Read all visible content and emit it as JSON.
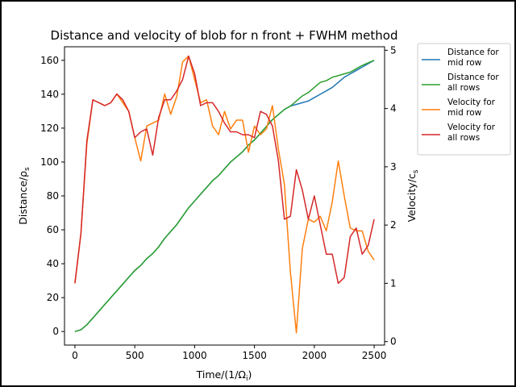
{
  "chart_data": {
    "type": "line",
    "title": "Distance and velocity of blob for n front + FWHM method",
    "xlabel": "Time/(1/Ω",
    "xlabel_sub": "i",
    "xlabel_tail": ")",
    "ylabel": "Distance/ρ",
    "ylabel_sub": "s",
    "y2label": "Velocity/c",
    "y2label_sub": "s",
    "xlim": [
      -87,
      2587
    ],
    "ylim": [
      -8,
      168
    ],
    "y2lim": [
      -0.06,
      5.06
    ],
    "xticks": [
      0,
      500,
      1000,
      1500,
      2000,
      2500
    ],
    "yticks": [
      0,
      20,
      40,
      60,
      80,
      100,
      120,
      140,
      160
    ],
    "y2ticks": [
      0,
      1,
      2,
      3,
      4,
      5
    ],
    "legend_position": "outside-right",
    "grid": false,
    "series": [
      {
        "name": "Distance for mid row",
        "legend_lines": [
          "Distance for",
          "mid row"
        ],
        "axis": "left",
        "color": "#1f77b4",
        "x": [
          0,
          50,
          100,
          150,
          200,
          250,
          300,
          350,
          400,
          450,
          500,
          550,
          600,
          650,
          700,
          750,
          800,
          850,
          900,
          950,
          1000,
          1050,
          1100,
          1150,
          1200,
          1250,
          1300,
          1350,
          1400,
          1450,
          1500,
          1550,
          1600,
          1650,
          1700,
          1750,
          1800,
          1850,
          1900,
          1950,
          2000,
          2050,
          2100,
          2150,
          2200,
          2250,
          2300,
          2350,
          2400,
          2450,
          2500
        ],
        "y": [
          0,
          1,
          4,
          8,
          12,
          16,
          20,
          24,
          28,
          32,
          36,
          39,
          43,
          46,
          50,
          55,
          59,
          63,
          68,
          73,
          77,
          81,
          85,
          89,
          92,
          96,
          100,
          103,
          106,
          110,
          113,
          117,
          121,
          125,
          128,
          131,
          133,
          134,
          135,
          136,
          138,
          140,
          142,
          144,
          147,
          150,
          152,
          154,
          156,
          158,
          160
        ]
      },
      {
        "name": "Distance for all rows",
        "legend_lines": [
          "Distance for",
          "all rows"
        ],
        "axis": "left",
        "color": "#2ca02c",
        "x": [
          0,
          50,
          100,
          150,
          200,
          250,
          300,
          350,
          400,
          450,
          500,
          550,
          600,
          650,
          700,
          750,
          800,
          850,
          900,
          950,
          1000,
          1050,
          1100,
          1150,
          1200,
          1250,
          1300,
          1350,
          1400,
          1450,
          1500,
          1550,
          1600,
          1650,
          1700,
          1750,
          1800,
          1850,
          1900,
          1950,
          2000,
          2050,
          2100,
          2150,
          2200,
          2250,
          2300,
          2350,
          2400,
          2450,
          2500
        ],
        "y": [
          0,
          1,
          4,
          8,
          12,
          16,
          20,
          24,
          28,
          32,
          36,
          39,
          43,
          46,
          50,
          55,
          59,
          63,
          68,
          73,
          77,
          81,
          85,
          89,
          92,
          96,
          100,
          103,
          106,
          110,
          113,
          117,
          121,
          125,
          128,
          131,
          133,
          136,
          139,
          141,
          144,
          147,
          148,
          150,
          151,
          152,
          153,
          155,
          157,
          158.5,
          160
        ]
      },
      {
        "name": "Velocity for mid row",
        "legend_lines": [
          "Velocity for",
          "mid row"
        ],
        "axis": "right",
        "color": "#ff7f0e",
        "x": [
          0,
          50,
          100,
          150,
          200,
          250,
          300,
          350,
          400,
          450,
          500,
          550,
          600,
          650,
          700,
          750,
          800,
          850,
          900,
          950,
          1000,
          1050,
          1100,
          1150,
          1200,
          1250,
          1300,
          1350,
          1400,
          1450,
          1500,
          1550,
          1600,
          1650,
          1700,
          1750,
          1800,
          1850,
          1900,
          1950,
          2000,
          2050,
          2100,
          2150,
          2200,
          2250,
          2300,
          2350,
          2400,
          2450,
          2500
        ],
        "y": [
          1.0,
          1.85,
          3.4,
          4.15,
          4.1,
          4.05,
          4.1,
          4.25,
          4.1,
          3.95,
          3.5,
          3.1,
          3.7,
          3.75,
          3.8,
          4.25,
          3.9,
          4.2,
          4.8,
          4.9,
          4.5,
          4.1,
          4.15,
          3.7,
          3.55,
          3.95,
          3.65,
          3.8,
          3.8,
          3.25,
          3.7,
          3.55,
          3.65,
          4.05,
          3.3,
          2.7,
          1.2,
          0.15,
          1.6,
          2.1,
          2.05,
          2.15,
          1.9,
          2.4,
          3.1,
          2.5,
          1.95,
          1.9,
          1.9,
          1.55,
          1.4
        ]
      },
      {
        "name": "Velocity for all rows",
        "legend_lines": [
          "Velocity for",
          "all rows"
        ],
        "axis": "right",
        "color": "#d62728",
        "x": [
          0,
          50,
          100,
          150,
          200,
          250,
          300,
          350,
          400,
          450,
          500,
          550,
          600,
          650,
          700,
          750,
          800,
          850,
          900,
          950,
          1000,
          1050,
          1100,
          1150,
          1200,
          1250,
          1300,
          1350,
          1400,
          1450,
          1500,
          1550,
          1600,
          1650,
          1700,
          1750,
          1800,
          1850,
          1900,
          1950,
          2000,
          2050,
          2100,
          2150,
          2200,
          2250,
          2300,
          2350,
          2400,
          2450,
          2500
        ],
        "y": [
          1.0,
          1.85,
          3.45,
          4.15,
          4.1,
          4.05,
          4.1,
          4.25,
          4.15,
          3.95,
          3.5,
          3.6,
          3.65,
          3.2,
          3.85,
          4.15,
          4.15,
          4.3,
          4.5,
          4.9,
          4.6,
          4.05,
          4.1,
          4.1,
          3.95,
          3.75,
          3.6,
          3.6,
          3.55,
          3.55,
          3.5,
          3.95,
          3.9,
          3.7,
          3.1,
          2.1,
          2.15,
          2.95,
          2.6,
          2.1,
          2.5,
          2.0,
          1.5,
          1.5,
          1.0,
          1.1,
          1.8,
          1.95,
          1.5,
          1.65,
          2.1
        ]
      }
    ]
  }
}
